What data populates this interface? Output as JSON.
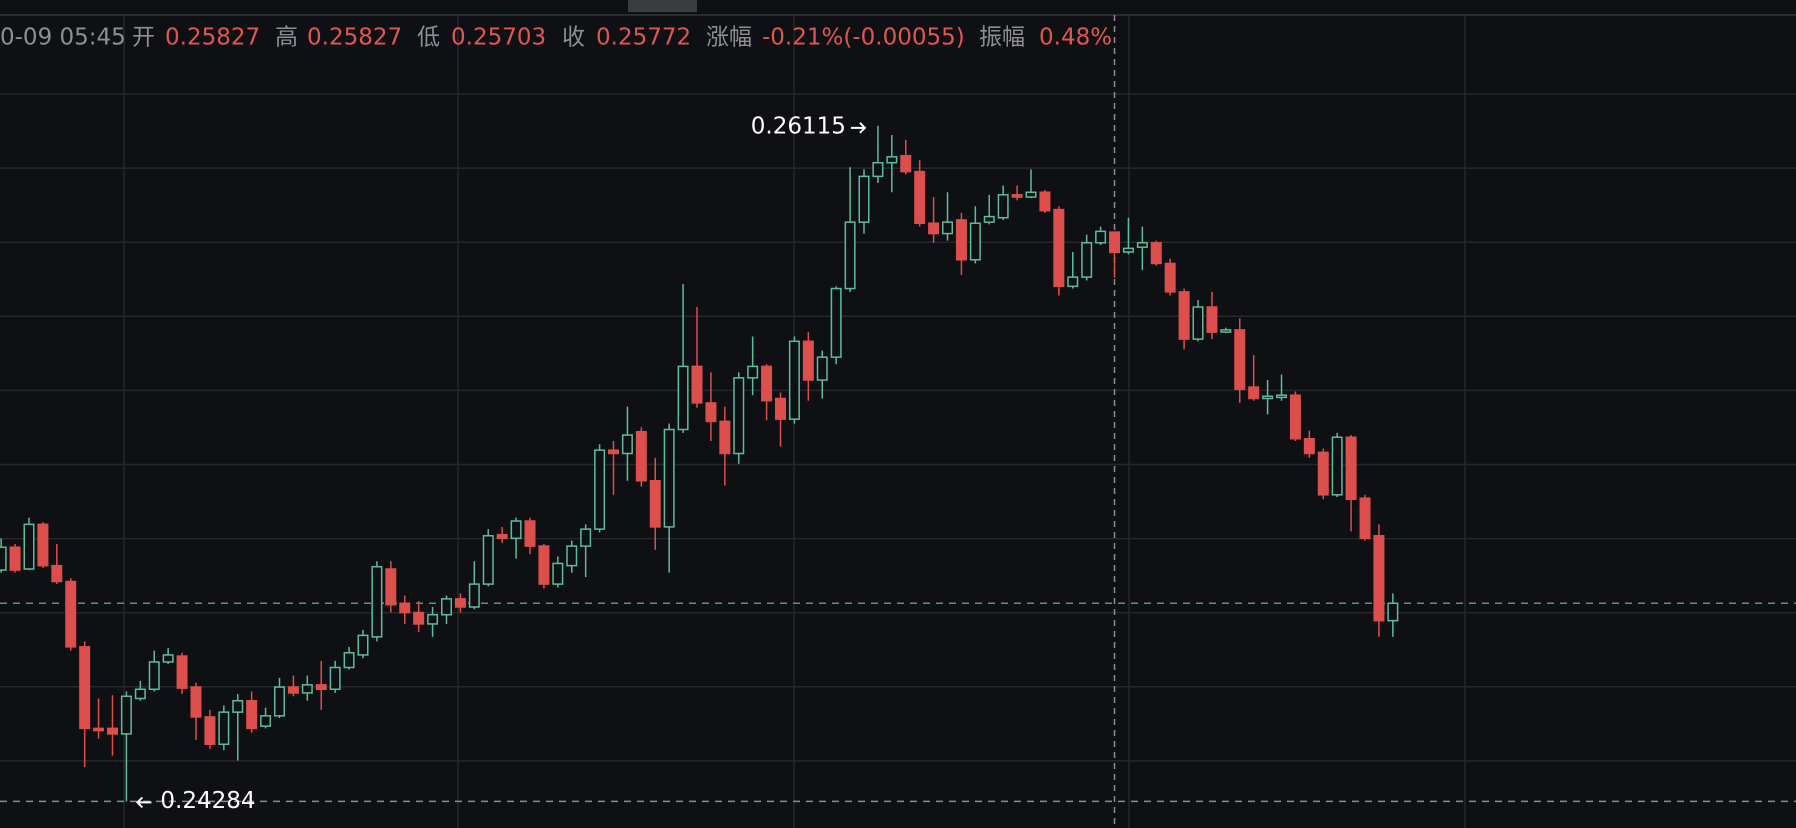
{
  "header": {
    "time": "0-09 05:45",
    "fields": [
      {
        "label": "开",
        "value": "0.25827"
      },
      {
        "label": "高",
        "value": "0.25827"
      },
      {
        "label": "低",
        "value": "0.25703"
      },
      {
        "label": "收",
        "value": "0.25772"
      },
      {
        "label": "涨幅",
        "value": "-0.21%(-0.00055)"
      },
      {
        "label": "振幅",
        "value": "0.48%"
      }
    ]
  },
  "chart_data": {
    "type": "candlestick",
    "open": [
      0.24911,
      0.24973,
      0.24914,
      0.25035,
      0.24923,
      0.2488,
      0.24703,
      0.24482,
      0.24482,
      0.24467,
      0.24563,
      0.24588,
      0.24662,
      0.24678,
      0.24594,
      0.24513,
      0.24439,
      0.24526,
      0.24557,
      0.24488,
      0.24516,
      0.24594,
      0.24578,
      0.246,
      0.24588,
      0.24647,
      0.24681,
      0.2473,
      0.24914,
      0.24821,
      0.24796,
      0.24765,
      0.2479,
      0.24833,
      0.24811,
      0.24873,
      0.25007,
      0.24997,
      0.25044,
      0.24976,
      0.24873,
      0.24923,
      0.24976,
      0.25022,
      0.25236,
      0.25227,
      0.25286,
      0.25153,
      0.25028,
      0.25292,
      0.25463,
      0.25364,
      0.25314,
      0.25227,
      0.25432,
      0.25463,
      0.25376,
      0.2532,
      0.25531,
      0.25426,
      0.25488,
      0.25674,
      0.25854,
      0.25978,
      0.26015,
      0.26034,
      0.25991,
      0.25851,
      0.25823,
      0.2586,
      0.25752,
      0.25854,
      0.25866,
      0.25928,
      0.25922,
      0.25935,
      0.25888,
      0.2568,
      0.25705,
      0.25798,
      0.25827,
      0.25773,
      0.25786,
      0.25798,
      0.25742,
      0.25665,
      0.25537,
      0.25624,
      0.25556,
      0.25562,
      0.25407,
      0.25376,
      0.25379,
      0.25385,
      0.25267,
      0.2523,
      0.25115,
      0.25271,
      0.25106,
      0.25004,
      0.24774
    ],
    "high": [
      0.24997,
      0.24982,
      0.25053,
      0.25041,
      0.24982,
      0.24889,
      0.24718,
      0.24563,
      0.24572,
      0.24582,
      0.2461,
      0.24693,
      0.247,
      0.24687,
      0.24606,
      0.24532,
      0.24544,
      0.24575,
      0.24582,
      0.24538,
      0.24619,
      0.24625,
      0.24625,
      0.24665,
      0.24665,
      0.24703,
      0.24749,
      0.24935,
      0.24935,
      0.24842,
      0.24827,
      0.24811,
      0.24842,
      0.24848,
      0.24935,
      0.25022,
      0.25028,
      0.25053,
      0.25053,
      0.24982,
      0.24948,
      0.24991,
      0.25035,
      0.25252,
      0.25261,
      0.25354,
      0.25298,
      0.25215,
      0.25308,
      0.25686,
      0.25624,
      0.25447,
      0.25354,
      0.25447,
      0.25544,
      0.25469,
      0.25392,
      0.25544,
      0.25556,
      0.25506,
      0.2568,
      0.26003,
      0.25997,
      0.26115,
      0.2609,
      0.26077,
      0.26022,
      0.25922,
      0.25935,
      0.25879,
      0.25897,
      0.25928,
      0.25953,
      0.25953,
      0.25997,
      0.25941,
      0.25897,
      0.25773,
      0.2582,
      0.25842,
      0.25827,
      0.25866,
      0.25842,
      0.25804,
      0.25755,
      0.25674,
      0.25643,
      0.25665,
      0.25568,
      0.25593,
      0.25494,
      0.25426,
      0.25441,
      0.25395,
      0.25289,
      0.2524,
      0.25283,
      0.25277,
      0.25115,
      0.25035,
      0.24848
    ],
    "low": [
      0.24904,
      0.24904,
      0.24911,
      0.24917,
      0.24873,
      0.24693,
      0.24377,
      0.24454,
      0.24408,
      0.24284,
      0.24557,
      0.24582,
      0.24656,
      0.24575,
      0.24451,
      0.24426,
      0.24423,
      0.24395,
      0.2447,
      0.24482,
      0.2451,
      0.24569,
      0.24557,
      0.24532,
      0.24578,
      0.24641,
      0.24672,
      0.24718,
      0.24796,
      0.24765,
      0.24743,
      0.2473,
      0.24765,
      0.24796,
      0.24805,
      0.24867,
      0.24985,
      0.24942,
      0.24954,
      0.24861,
      0.24864,
      0.24904,
      0.24892,
      0.25013,
      0.25115,
      0.25153,
      0.25137,
      0.24966,
      0.24904,
      0.25283,
      0.25351,
      0.25261,
      0.2514,
      0.25199,
      0.25385,
      0.25317,
      0.25246,
      0.25308,
      0.2537,
      0.25376,
      0.25469,
      0.25665,
      0.25823,
      0.2596,
      0.25935,
      0.25984,
      0.25842,
      0.25798,
      0.25804,
      0.25711,
      0.25742,
      0.25848,
      0.2586,
      0.25913,
      0.25919,
      0.25879,
      0.25655,
      0.25674,
      0.25696,
      0.25792,
      0.25703,
      0.25767,
      0.25724,
      0.25736,
      0.25655,
      0.25509,
      0.25531,
      0.25537,
      0.25553,
      0.25364,
      0.2537,
      0.25333,
      0.2537,
      0.25261,
      0.25215,
      0.25103,
      0.25109,
      0.25016,
      0.24991,
      0.2473,
      0.2473
    ],
    "close": [
      0.24973,
      0.24911,
      0.25035,
      0.24923,
      0.2488,
      0.24703,
      0.24482,
      0.24476,
      0.24467,
      0.24569,
      0.24588,
      0.24662,
      0.24681,
      0.24591,
      0.24513,
      0.24439,
      0.24526,
      0.24557,
      0.24482,
      0.24516,
      0.24594,
      0.24578,
      0.246,
      0.24588,
      0.24647,
      0.24687,
      0.24734,
      0.2492,
      0.24817,
      0.24796,
      0.24765,
      0.2479,
      0.24833,
      0.24811,
      0.24873,
      0.25004,
      0.24997,
      0.25044,
      0.24976,
      0.24873,
      0.24929,
      0.24976,
      0.25022,
      0.25236,
      0.25227,
      0.25277,
      0.25153,
      0.25028,
      0.25292,
      0.25463,
      0.25364,
      0.25314,
      0.25227,
      0.25432,
      0.25463,
      0.2537,
      0.2532,
      0.25531,
      0.25426,
      0.25488,
      0.25674,
      0.25854,
      0.25978,
      0.26015,
      0.26031,
      0.25991,
      0.25851,
      0.25823,
      0.25854,
      0.25752,
      0.25851,
      0.25869,
      0.25928,
      0.25922,
      0.25935,
      0.25885,
      0.2568,
      0.25705,
      0.25798,
      0.25829,
      0.25772,
      0.25783,
      0.25798,
      0.25742,
      0.25665,
      0.25537,
      0.25624,
      0.25556,
      0.25562,
      0.25401,
      0.25376,
      0.25382,
      0.25385,
      0.25267,
      0.25227,
      0.25115,
      0.25271,
      0.25103,
      0.24997,
      0.24774,
      0.24821
    ],
    "ylim": [
      0.24212,
      0.26456
    ],
    "up_color": "#5cbd9b",
    "down_color": "#dc4f4c",
    "annotations": [
      {
        "value": 0.26115
      },
      {
        "value": 0.24284
      }
    ]
  }
}
